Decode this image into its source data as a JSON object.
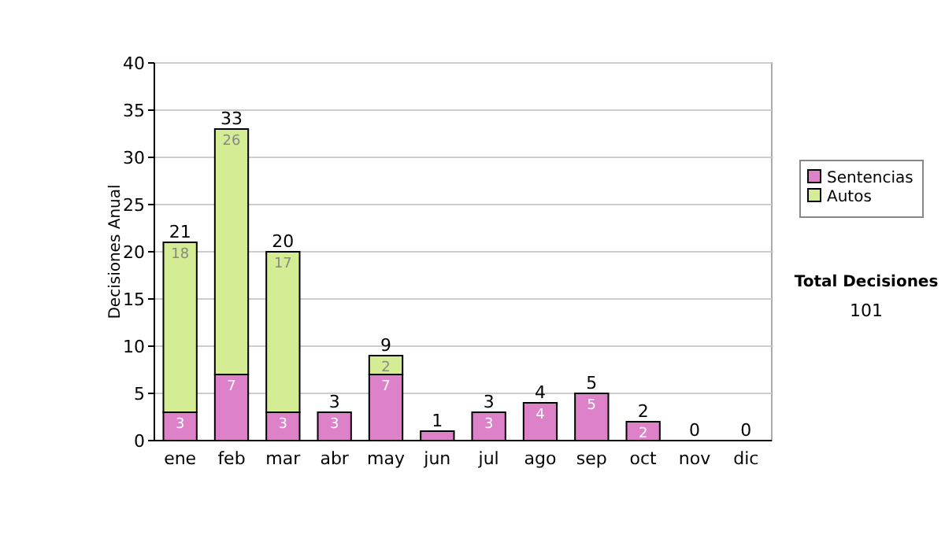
{
  "chart_data": {
    "type": "bar",
    "ylabel": "Decisiones Anual",
    "categories": [
      "ene",
      "feb",
      "mar",
      "abr",
      "may",
      "jun",
      "jul",
      "ago",
      "sep",
      "oct",
      "nov",
      "dic"
    ],
    "series": [
      {
        "name": "Sentencias",
        "color": "#dd82c8",
        "values": [
          3,
          7,
          3,
          3,
          7,
          1,
          3,
          4,
          5,
          2,
          0,
          0
        ],
        "value_labels": [
          "3",
          "7",
          "3",
          "3",
          "7",
          null,
          "3",
          "4",
          "5",
          "2",
          null,
          null
        ]
      },
      {
        "name": "Autos",
        "color": "#d4ec94",
        "values": [
          18,
          26,
          17,
          0,
          2,
          0,
          0,
          0,
          0,
          0,
          0,
          0
        ],
        "value_labels": [
          "18",
          "26",
          "17",
          null,
          "2",
          null,
          null,
          null,
          null,
          null,
          null,
          null
        ]
      }
    ],
    "stacked": true,
    "totals": [
      "21",
      "33",
      "20",
      "3",
      "9",
      "1",
      "3",
      "4",
      "5",
      "2",
      "0",
      "0"
    ],
    "ylim": [
      0,
      40
    ],
    "yticks": [
      0,
      5,
      10,
      15,
      20,
      25,
      30,
      35,
      40
    ],
    "grid": "y",
    "legend": "right",
    "annotations": [
      "Total Decisiones",
      "101"
    ]
  }
}
